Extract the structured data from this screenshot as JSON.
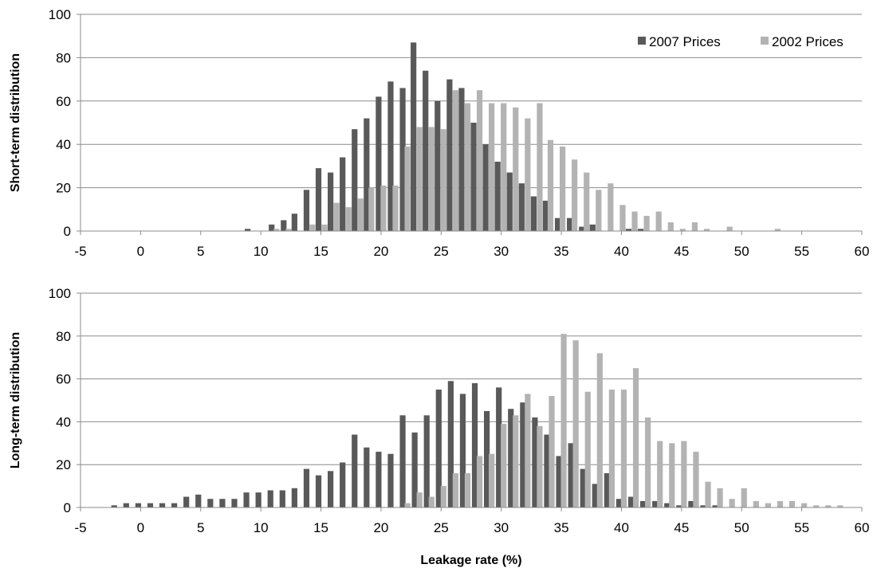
{
  "chart_data": [
    {
      "type": "bar",
      "panel": "top",
      "ylabel": "Short-term distribution",
      "xlabel": "",
      "xlim": [
        -5,
        60
      ],
      "ylim": [
        0,
        100
      ],
      "xticks": [
        "-5",
        "0",
        "5",
        "10",
        "15",
        "20",
        "25",
        "30",
        "35",
        "40",
        "45",
        "50",
        "55",
        "60"
      ],
      "yticks": [
        "0",
        "20",
        "40",
        "60",
        "80",
        "100"
      ],
      "grid": true,
      "legend": "top-right",
      "series": [
        {
          "name": "2007 Prices",
          "color": "#595959",
          "x": [
            8.9,
            10.9,
            11.9,
            12.8,
            13.8,
            14.8,
            15.8,
            16.8,
            17.8,
            18.8,
            19.8,
            20.8,
            21.8,
            22.7,
            23.7,
            24.7,
            25.7,
            26.7,
            27.7,
            28.7,
            29.7,
            30.7,
            31.7,
            32.7,
            33.7,
            34.7,
            35.7,
            36.7,
            37.6,
            40.6,
            41.6
          ],
          "values": [
            1,
            3,
            5,
            8,
            19,
            29,
            27,
            34,
            47,
            52,
            62,
            69,
            66,
            87,
            74,
            60,
            70,
            66,
            50,
            40,
            32,
            27,
            22,
            16,
            14,
            6,
            6,
            2,
            3,
            1,
            1
          ]
        },
        {
          "name": "2002 Prices",
          "color": "#b3b3b3",
          "x": [
            11.3,
            12.3,
            14.3,
            15.3,
            16.3,
            17.3,
            18.3,
            19.2,
            20.2,
            21.2,
            22.2,
            23.2,
            24.2,
            25.2,
            26.2,
            27.2,
            28.2,
            29.2,
            30.2,
            31.2,
            32.2,
            33.2,
            34.1,
            35.1,
            36.1,
            37.1,
            38.1,
            39.1,
            40.1,
            41.1,
            42.1,
            43.1,
            44.1,
            45.1,
            46.1,
            47.1,
            49.0,
            53.0
          ],
          "values": [
            1,
            1,
            3,
            3,
            13,
            11,
            15,
            20,
            21,
            21,
            39,
            48,
            48,
            47,
            65,
            59,
            65,
            59,
            59,
            57,
            52,
            59,
            42,
            39,
            33,
            27,
            19,
            22,
            12,
            9,
            7,
            9,
            4,
            1,
            4,
            1,
            2,
            1
          ]
        }
      ]
    },
    {
      "type": "bar",
      "panel": "bottom",
      "ylabel": "Long-term distribution",
      "xlabel": "Leakage rate (%)",
      "xlim": [
        -5,
        60
      ],
      "ylim": [
        0,
        100
      ],
      "xticks": [
        "-5",
        "0",
        "5",
        "10",
        "15",
        "20",
        "25",
        "30",
        "35",
        "40",
        "45",
        "50",
        "55",
        "60"
      ],
      "yticks": [
        "0",
        "20",
        "40",
        "60",
        "80",
        "100"
      ],
      "grid": true,
      "series": [
        {
          "name": "2007 Prices",
          "color": "#595959",
          "x": [
            -2.2,
            -1.2,
            -0.2,
            0.8,
            1.8,
            2.8,
            3.8,
            4.8,
            5.8,
            6.8,
            7.8,
            8.8,
            9.8,
            10.8,
            11.8,
            12.8,
            13.8,
            14.8,
            15.8,
            16.8,
            17.8,
            18.8,
            19.8,
            20.8,
            21.8,
            22.8,
            23.8,
            24.8,
            25.8,
            26.8,
            27.8,
            28.8,
            29.8,
            30.8,
            31.8,
            32.8,
            33.8,
            34.8,
            35.8,
            36.8,
            37.8,
            38.8,
            39.8,
            40.8,
            41.8,
            42.8,
            43.8,
            44.8,
            45.8,
            46.8,
            47.8
          ],
          "values": [
            1,
            2,
            2,
            2,
            2,
            2,
            5,
            6,
            4,
            4,
            4,
            7,
            7,
            8,
            8,
            9,
            18,
            15,
            17,
            21,
            34,
            28,
            26,
            25,
            43,
            35,
            43,
            55,
            59,
            53,
            58,
            45,
            56,
            46,
            49,
            42,
            34,
            24,
            30,
            18,
            11,
            16,
            4,
            5,
            3,
            3,
            2,
            1,
            3,
            1,
            1
          ]
        },
        {
          "name": "2002 Prices",
          "color": "#b3b3b3",
          "x": [
            22.2,
            23.2,
            24.2,
            25.2,
            26.2,
            27.2,
            28.2,
            29.2,
            30.2,
            31.2,
            32.2,
            33.2,
            34.2,
            35.2,
            36.2,
            37.2,
            38.2,
            39.2,
            40.2,
            41.2,
            42.2,
            43.2,
            44.2,
            45.2,
            46.2,
            47.2,
            48.2,
            49.2,
            50.2,
            51.2,
            52.2,
            53.2,
            54.2,
            55.2,
            56.2,
            57.2,
            58.2
          ],
          "values": [
            2,
            7,
            5,
            10,
            16,
            16,
            24,
            25,
            39,
            43,
            53,
            38,
            52,
            81,
            78,
            54,
            72,
            55,
            55,
            65,
            42,
            31,
            30,
            31,
            26,
            12,
            9,
            4,
            9,
            3,
            2,
            3,
            3,
            2,
            1,
            1,
            1
          ]
        }
      ]
    }
  ]
}
